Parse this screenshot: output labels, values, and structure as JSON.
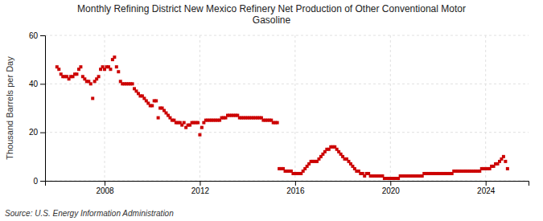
{
  "chart_data": {
    "type": "scatter",
    "title": "Monthly Refining District New Mexico Refinery Net Production of Other Conventional Motor\nGasoline",
    "ylabel": "Thousand Barrels per Day",
    "annotations": [
      "Source: U.S. Energy Information Administration"
    ],
    "color": "#cc0000",
    "marker": "square",
    "grid": true,
    "xlim": [
      2005.5,
      2025.8
    ],
    "xticks": [
      2008,
      2012,
      2016,
      2020,
      2024
    ],
    "ylim": [
      0,
      60
    ],
    "yticks": [
      0,
      20,
      40,
      60
    ],
    "x": [
      2006.0,
      2006.083,
      2006.167,
      2006.25,
      2006.333,
      2006.417,
      2006.5,
      2006.583,
      2006.667,
      2006.75,
      2006.833,
      2006.917,
      2007.0,
      2007.083,
      2007.167,
      2007.25,
      2007.333,
      2007.417,
      2007.5,
      2007.583,
      2007.667,
      2007.75,
      2007.833,
      2007.917,
      2008.0,
      2008.083,
      2008.167,
      2008.25,
      2008.333,
      2008.417,
      2008.5,
      2008.583,
      2008.667,
      2008.75,
      2008.833,
      2008.917,
      2009.0,
      2009.083,
      2009.167,
      2009.25,
      2009.333,
      2009.417,
      2009.5,
      2009.583,
      2009.667,
      2009.75,
      2009.833,
      2009.917,
      2010.0,
      2010.083,
      2010.167,
      2010.25,
      2010.333,
      2010.417,
      2010.5,
      2010.583,
      2010.667,
      2010.75,
      2010.833,
      2010.917,
      2011.0,
      2011.083,
      2011.167,
      2011.25,
      2011.333,
      2011.417,
      2011.5,
      2011.583,
      2011.667,
      2011.75,
      2011.833,
      2011.917,
      2012.0,
      2012.083,
      2012.167,
      2012.25,
      2012.333,
      2012.417,
      2012.5,
      2012.583,
      2012.667,
      2012.75,
      2012.833,
      2012.917,
      2013.0,
      2013.083,
      2013.167,
      2013.25,
      2013.333,
      2013.417,
      2013.5,
      2013.583,
      2013.667,
      2013.75,
      2013.833,
      2013.917,
      2014.0,
      2014.083,
      2014.167,
      2014.25,
      2014.333,
      2014.417,
      2014.5,
      2014.583,
      2014.667,
      2014.75,
      2014.833,
      2014.917,
      2015.0,
      2015.083,
      2015.167,
      2015.25,
      2015.333,
      2015.417,
      2015.5,
      2015.583,
      2015.667,
      2015.75,
      2015.833,
      2015.917,
      2016.0,
      2016.083,
      2016.167,
      2016.25,
      2016.333,
      2016.417,
      2016.5,
      2016.583,
      2016.667,
      2016.75,
      2016.833,
      2016.917,
      2017.0,
      2017.083,
      2017.167,
      2017.25,
      2017.333,
      2017.417,
      2017.5,
      2017.583,
      2017.667,
      2017.75,
      2017.833,
      2017.917,
      2018.0,
      2018.083,
      2018.167,
      2018.25,
      2018.333,
      2018.417,
      2018.5,
      2018.583,
      2018.667,
      2018.75,
      2018.833,
      2018.917,
      2019.0,
      2019.083,
      2019.167,
      2019.25,
      2019.333,
      2019.417,
      2019.5,
      2019.583,
      2019.667,
      2019.75,
      2019.833,
      2019.917,
      2020.0,
      2020.083,
      2020.167,
      2020.25,
      2020.333,
      2020.417,
      2020.5,
      2020.583,
      2020.667,
      2020.75,
      2020.833,
      2020.917,
      2021.0,
      2021.083,
      2021.167,
      2021.25,
      2021.333,
      2021.417,
      2021.5,
      2021.583,
      2021.667,
      2021.75,
      2021.833,
      2021.917,
      2022.0,
      2022.083,
      2022.167,
      2022.25,
      2022.333,
      2022.417,
      2022.5,
      2022.583,
      2022.667,
      2022.75,
      2022.833,
      2022.917,
      2023.0,
      2023.083,
      2023.167,
      2023.25,
      2023.333,
      2023.417,
      2023.5,
      2023.583,
      2023.667,
      2023.75,
      2023.833,
      2023.917,
      2024.0,
      2024.083,
      2024.167,
      2024.25,
      2024.333,
      2024.417,
      2024.5,
      2024.583,
      2024.667,
      2024.75,
      2024.833,
      2024.917
    ],
    "values": [
      47,
      46,
      44,
      43,
      43,
      43,
      42,
      43,
      43,
      44,
      44,
      46,
      47,
      43,
      42,
      41,
      41,
      40,
      34,
      41,
      42,
      43,
      46,
      47,
      46,
      47,
      47,
      46,
      50,
      51,
      47,
      45,
      41,
      40,
      40,
      40,
      40,
      40,
      40,
      38,
      37,
      36,
      35,
      35,
      34,
      33,
      32,
      31,
      31,
      33,
      33,
      26,
      30,
      30,
      29,
      28,
      27,
      26,
      25,
      25,
      24,
      24,
      24,
      23,
      24,
      22,
      23,
      23,
      24,
      24,
      24,
      24,
      19,
      22,
      24,
      25,
      25,
      25,
      25,
      25,
      25,
      25,
      25,
      26,
      26,
      26,
      27,
      27,
      27,
      27,
      27,
      27,
      26,
      26,
      26,
      26,
      26,
      26,
      26,
      26,
      26,
      26,
      26,
      26,
      25,
      25,
      25,
      25,
      25,
      24,
      24,
      24,
      5,
      5,
      5,
      4,
      4,
      4,
      4,
      3,
      3,
      3,
      3,
      3,
      4,
      5,
      6,
      7,
      8,
      8,
      8,
      8,
      9,
      10,
      11,
      12,
      13,
      13,
      14,
      14,
      14,
      13,
      12,
      11,
      10,
      9,
      9,
      8,
      7,
      6,
      5,
      4,
      4,
      3,
      3,
      2,
      3,
      3,
      2,
      2,
      2,
      2,
      2,
      2,
      2,
      1,
      1,
      1,
      1,
      1,
      1,
      1,
      1,
      2,
      2,
      2,
      2,
      2,
      2,
      2,
      2,
      2,
      2,
      2,
      2,
      3,
      3,
      3,
      3,
      3,
      3,
      3,
      3,
      3,
      3,
      3,
      3,
      3,
      3,
      3,
      4,
      4,
      4,
      4,
      4,
      4,
      4,
      4,
      4,
      4,
      4,
      4,
      4,
      4,
      5,
      5,
      5,
      5,
      5,
      6,
      6,
      7,
      7,
      8,
      9,
      10,
      8,
      5
    ]
  }
}
